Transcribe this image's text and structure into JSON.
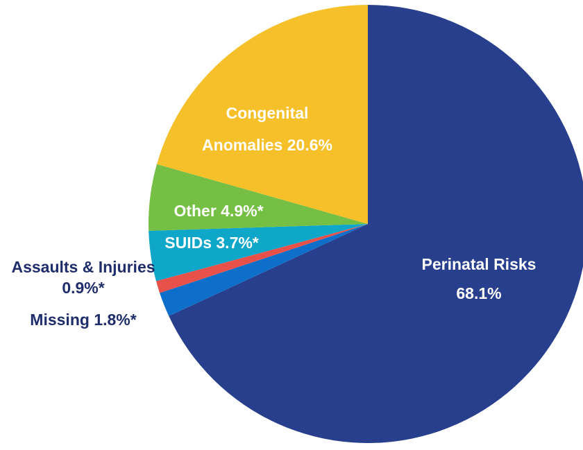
{
  "chart_data": {
    "type": "pie",
    "categories": [
      "Perinatal Risks",
      "Missing",
      "Assaults & Injuries",
      "SUIDs",
      "Other",
      "Congenital Anomalies"
    ],
    "values": [
      68.1,
      1.8,
      0.9,
      3.7,
      4.9,
      20.6
    ],
    "value_labels": [
      "68.1%",
      "1.8%*",
      "0.9%*",
      "3.7%*",
      "4.9%*",
      "20.6%"
    ],
    "colors": [
      "#283f8e",
      "#0d6fc9",
      "#e8504a",
      "#0ea7c9",
      "#74bf44",
      "#f6c02a"
    ]
  }
}
